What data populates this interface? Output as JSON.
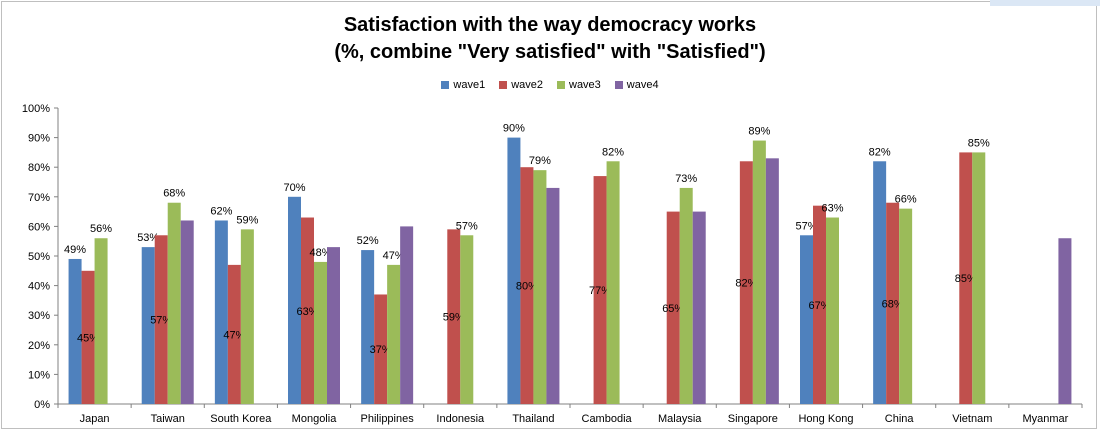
{
  "chart_data": {
    "type": "bar",
    "title": "Satisfaction with the way democracy works",
    "subtitle": "(%, combine \"Very satisfied\" with \"Satisfied\")",
    "categories": [
      "Japan",
      "Taiwan",
      "South Korea",
      "Mongolia",
      "Philippines",
      "Indonesia",
      "Thailand",
      "Cambodia",
      "Malaysia",
      "Singapore",
      "Hong Kong",
      "China",
      "Vietnam",
      "Myanmar"
    ],
    "series": [
      {
        "name": "wave1",
        "color": "#4f81bd",
        "values": [
          49,
          53,
          62,
          70,
          52,
          null,
          90,
          null,
          null,
          null,
          57,
          82,
          null,
          null
        ],
        "labels": [
          "49%",
          "53%",
          "62%",
          "70%",
          "52%",
          "",
          "90%",
          "",
          "",
          "",
          "57%",
          "82%",
          "",
          ""
        ]
      },
      {
        "name": "wave2",
        "color": "#c0504d",
        "values": [
          45,
          57,
          47,
          63,
          37,
          59,
          80,
          77,
          65,
          82,
          67,
          68,
          85,
          null
        ],
        "labels": [
          "45%",
          "57%",
          "47%",
          "63%",
          "37%",
          "59%",
          "80%",
          "77%",
          "65%",
          "82%",
          "67%",
          "68%",
          "85%",
          ""
        ]
      },
      {
        "name": "wave3",
        "color": "#9bbb59",
        "values": [
          56,
          68,
          59,
          48,
          47,
          57,
          79,
          82,
          73,
          89,
          63,
          66,
          85,
          null
        ],
        "labels": [
          "56%",
          "68%",
          "59%",
          "48%",
          "47%",
          "57%",
          "79%",
          "82%",
          "73%",
          "89%",
          "63%",
          "66%",
          "85%",
          ""
        ]
      },
      {
        "name": "wave4",
        "color": "#8064a2",
        "values": [
          null,
          62,
          null,
          53,
          60,
          null,
          73,
          null,
          65,
          83,
          null,
          null,
          null,
          56
        ],
        "labels": [
          "",
          "",
          "",
          "",
          "",
          "",
          "",
          "",
          "",
          "",
          "",
          "",
          "",
          ""
        ]
      }
    ],
    "y_ticks": [
      "0%",
      "10%",
      "20%",
      "30%",
      "40%",
      "50%",
      "60%",
      "70%",
      "80%",
      "90%",
      "100%"
    ],
    "ylim": [
      0,
      100
    ],
    "grid": false,
    "legend_position": "top-center"
  }
}
